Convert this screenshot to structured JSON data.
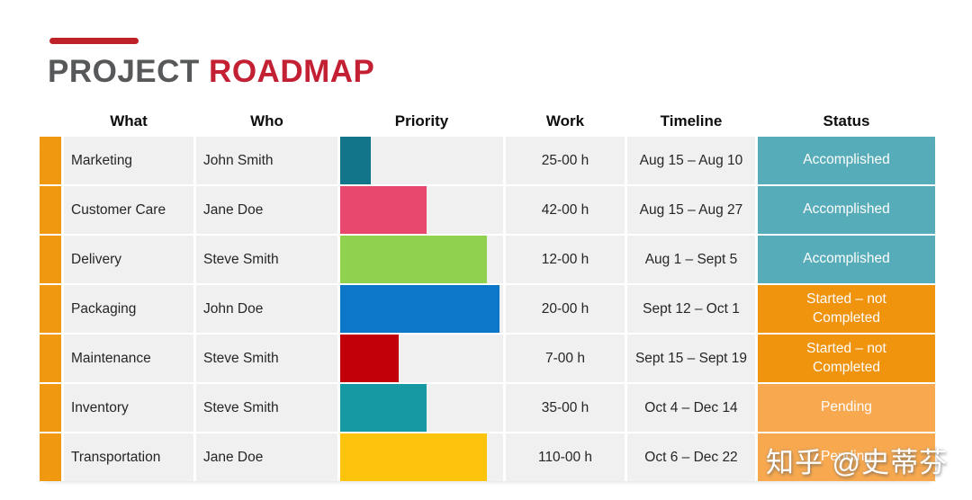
{
  "title": {
    "primary": "PROJECT",
    "secondary": "ROADMAP"
  },
  "columns": [
    "What",
    "Who",
    "Priority",
    "Work",
    "Timeline",
    "Status"
  ],
  "rows": [
    {
      "what": "Marketing",
      "who": "John Smith",
      "priority_pct": 19,
      "priority_color": "#13758A",
      "work": "25-00 h",
      "timeline": "Aug 15 – Aug 10",
      "status": "Accomplished",
      "status_type": "accomplished"
    },
    {
      "what": "Customer Care",
      "who": "Jane Doe",
      "priority_pct": 53,
      "priority_color": "#E8486D",
      "work": "42-00 h",
      "timeline": "Aug 15 – Aug 27",
      "status": "Accomplished",
      "status_type": "accomplished"
    },
    {
      "what": "Delivery",
      "who": "Steve Smith",
      "priority_pct": 90,
      "priority_color": "#90D14F",
      "work": "12-00 h",
      "timeline": "Aug 1 – Sept 5",
      "status": "Accomplished",
      "status_type": "accomplished"
    },
    {
      "what": "Packaging",
      "who": "John Doe",
      "priority_pct": 98,
      "priority_color": "#0C77C8",
      "work": "20-00 h",
      "timeline": "Sept 12 – Oct 1",
      "status": "Started – not Completed",
      "status_type": "started"
    },
    {
      "what": "Maintenance",
      "who": "Steve Smith",
      "priority_pct": 36,
      "priority_color": "#C20009",
      "work": "7-00 h",
      "timeline": "Sept 15 – Sept 19",
      "status": "Started – not Completed",
      "status_type": "started"
    },
    {
      "what": "Inventory",
      "who": "Steve Smith",
      "priority_pct": 53,
      "priority_color": "#1799A4",
      "work": "35-00 h",
      "timeline": "Oct 4 – Dec 14",
      "status": "Pending",
      "status_type": "pending"
    },
    {
      "what": "Transportation",
      "who": "Jane Doe",
      "priority_pct": 90,
      "priority_color": "#FEC40D",
      "work": "110-00 h",
      "timeline": "Oct 6 – Dec 22",
      "status": "Pending",
      "status_type": "pending"
    }
  ],
  "status_colors": {
    "accomplished": "#57ACB9",
    "started": "#F0930D",
    "pending": "#F8A94F"
  },
  "marker_color": "#F0980F",
  "accent": {
    "line": "#BE2126",
    "title_primary": "#57585A",
    "title_secondary": "#C32033"
  },
  "watermark": "知乎 @史蒂芬"
}
